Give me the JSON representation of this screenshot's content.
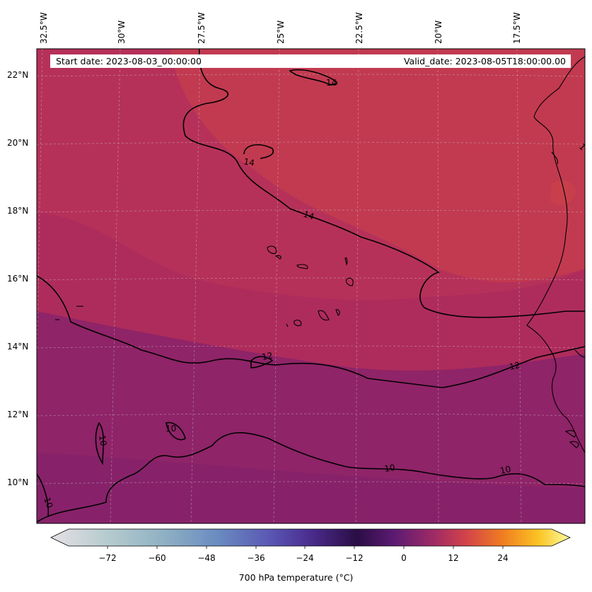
{
  "header": {
    "start_date": "Start date: 2023-08-03_00:00:00",
    "valid_date": "Valid_date: 2023-08-05T18:00:00.00"
  },
  "longitude_labels": [
    "32.5°W",
    "30°W",
    "27.5°W",
    "25°W",
    "22.5°W",
    "20°W",
    "17.5°W"
  ],
  "latitude_labels": [
    "22°N",
    "20°N",
    "18°N",
    "16°N",
    "14°N",
    "12°N",
    "10°N"
  ],
  "contour_labels": [
    "14",
    "14",
    "14",
    "12",
    "12",
    "10",
    "10",
    "10",
    "10",
    "10",
    "1"
  ],
  "colorbar": {
    "label": "700 hPa temperature ($^\\circ$C)",
    "label_display": "700 hPa temperature (°C)",
    "ticks": [
      "−72",
      "−60",
      "−48",
      "−36",
      "−24",
      "−12",
      "0",
      "12",
      "24"
    ],
    "colormap": "inferno-like",
    "colors": [
      "#e3dde3",
      "#a9c6c6",
      "#6c97c2",
      "#5a55b4",
      "#3a1a6b",
      "#2a0a3c",
      "#7a1a6c",
      "#c8384a",
      "#f07a1c",
      "#fbd020",
      "#fffc9e"
    ]
  },
  "map": {
    "field_colors": {
      "warm": "#c23a50",
      "mid": "#ae2c5c",
      "cool": "#8f2468"
    },
    "contour_color": "#000000",
    "gridline_color": "#cccccc"
  }
}
